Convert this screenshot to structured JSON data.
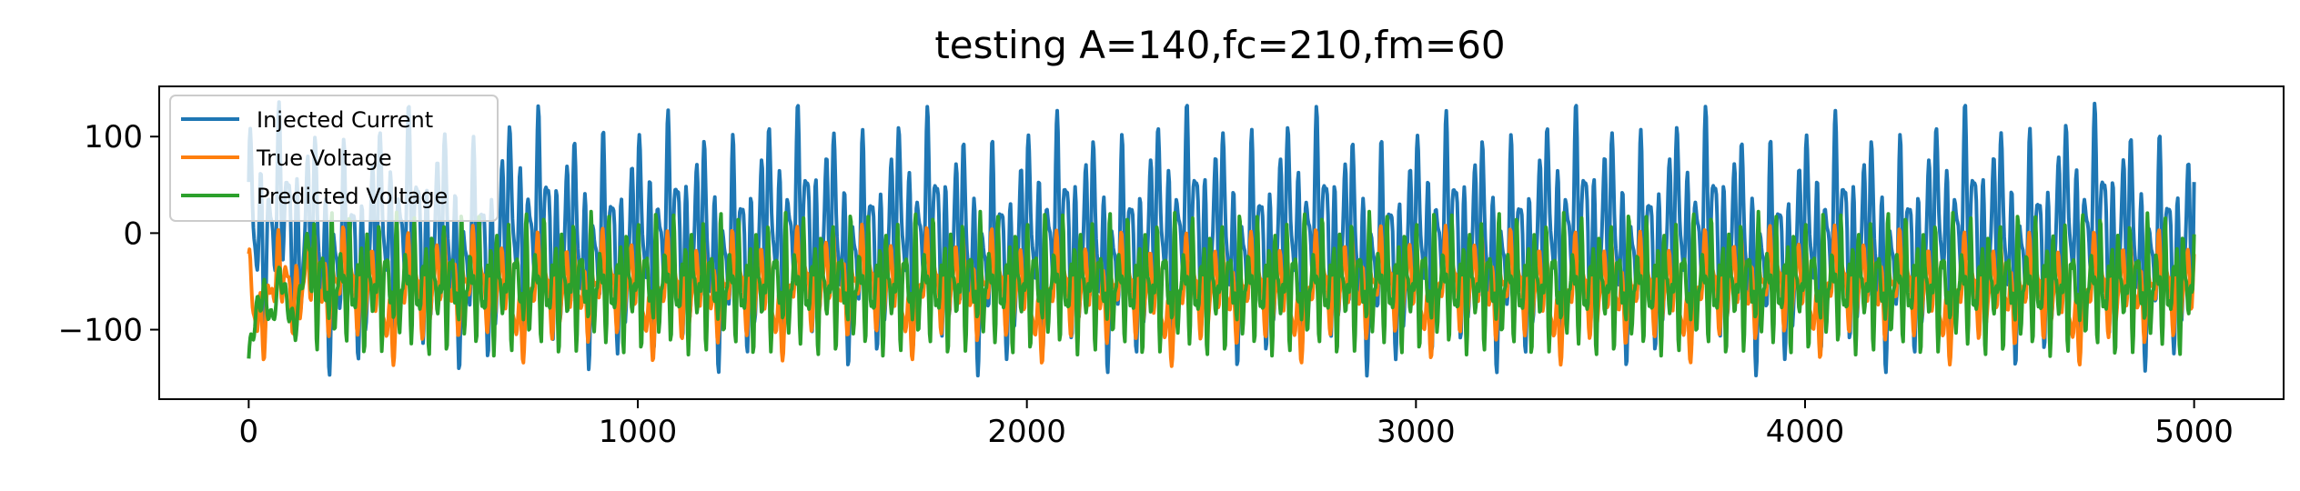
{
  "chart_data": {
    "type": "line",
    "title": "testing A=140,fc=210,fm=60",
    "xlabel": "",
    "ylabel": "",
    "xlim": [
      -230,
      5230
    ],
    "ylim": [
      -172,
      152
    ],
    "x_ticks": [
      0,
      1000,
      2000,
      3000,
      4000,
      5000
    ],
    "x_tick_labels": [
      "0",
      "1000",
      "2000",
      "3000",
      "4000",
      "5000"
    ],
    "y_ticks": [
      -100,
      0,
      100
    ],
    "y_tick_labels": [
      "−100",
      "0",
      "100"
    ],
    "grid": false,
    "legend_position": "top-left",
    "x_range": [
      0,
      5000
    ],
    "series": [
      {
        "name": "Injected Current",
        "color": "#1f77b4",
        "points": [
          [
            0,
            0
          ],
          [
            50,
            110
          ],
          [
            100,
            70
          ],
          [
            150,
            135
          ],
          [
            200,
            -70
          ],
          [
            300,
            -135
          ],
          [
            400,
            130
          ],
          [
            450,
            -150
          ],
          [
            500,
            120
          ],
          [
            600,
            -100
          ],
          [
            700,
            130
          ],
          [
            800,
            -130
          ],
          [
            900,
            135
          ],
          [
            1000,
            -120
          ],
          [
            1500,
            130
          ],
          [
            2000,
            -130
          ],
          [
            2500,
            135
          ],
          [
            3000,
            -135
          ],
          [
            3500,
            135
          ],
          [
            4000,
            -130
          ],
          [
            4500,
            135
          ],
          [
            5000,
            0
          ]
        ]
      },
      {
        "name": "True Voltage",
        "color": "#ff7f0e",
        "points": [
          [
            0,
            -60
          ],
          [
            30,
            10
          ],
          [
            60,
            -95
          ],
          [
            100,
            -60
          ],
          [
            200,
            40
          ],
          [
            300,
            -75
          ],
          [
            450,
            -152
          ],
          [
            500,
            45
          ],
          [
            700,
            -70
          ],
          [
            800,
            -152
          ],
          [
            1000,
            40
          ],
          [
            1100,
            -152
          ],
          [
            1500,
            45
          ],
          [
            2000,
            -80
          ],
          [
            2500,
            -152
          ],
          [
            3000,
            40
          ],
          [
            3500,
            -152
          ],
          [
            4000,
            45
          ],
          [
            4500,
            -152
          ],
          [
            5000,
            -65
          ]
        ]
      },
      {
        "name": "Predicted Voltage",
        "color": "#2ca02c",
        "points": [
          [
            0,
            -130
          ],
          [
            20,
            -80
          ],
          [
            40,
            -60
          ],
          [
            60,
            -95
          ],
          [
            80,
            -40
          ],
          [
            100,
            -75
          ],
          [
            120,
            -100
          ],
          [
            150,
            -10
          ],
          [
            200,
            20
          ],
          [
            500,
            -25
          ],
          [
            1000,
            20
          ],
          [
            1500,
            -25
          ],
          [
            2000,
            20
          ],
          [
            2500,
            -25
          ],
          [
            3000,
            20
          ],
          [
            3500,
            -25
          ],
          [
            4000,
            20
          ],
          [
            4500,
            -25
          ],
          [
            5000,
            -20
          ]
        ]
      }
    ]
  }
}
